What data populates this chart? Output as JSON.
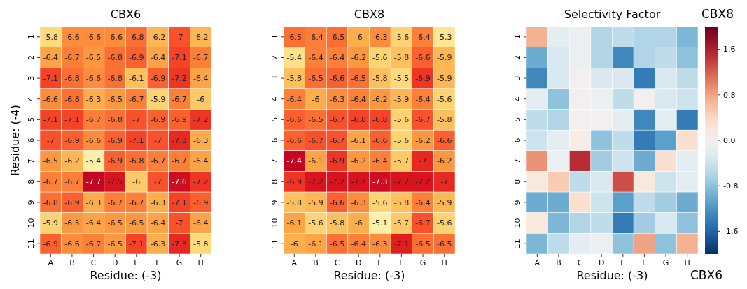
{
  "chart_data": [
    {
      "type": "heatmap",
      "title": "CBX6",
      "xlabel": "Residue: (-3)",
      "ylabel": "Residue: (-4)",
      "data_labels": true,
      "categories": [
        "A",
        "B",
        "C",
        "D",
        "E",
        "F",
        "G",
        "H"
      ],
      "y_categories": [
        "1",
        "2",
        "3",
        "4",
        "5",
        "6",
        "7",
        "8",
        "9",
        "10",
        "11"
      ],
      "cells": [
        [
          -5.8,
          -6.6,
          -6.6,
          -6.6,
          -6.8,
          -6.2,
          -7,
          -6.2
        ],
        [
          -6.4,
          -6.7,
          -6.5,
          -6.8,
          -6.9,
          -6.4,
          -7.1,
          -6.7
        ],
        [
          -7.1,
          -6.8,
          -6.6,
          -6.8,
          -6.1,
          -6.9,
          -7.2,
          -6.4
        ],
        [
          -6.6,
          -6.8,
          -6.3,
          -6.5,
          -6.7,
          -5.9,
          -6.7,
          -6
        ],
        [
          -7.1,
          -7.1,
          -6.7,
          -6.8,
          -7,
          -6.9,
          -6.9,
          -7.2
        ],
        [
          -7,
          -6.9,
          -6.6,
          -6.9,
          -7.1,
          -7,
          -7.3,
          -6.3
        ],
        [
          -6.5,
          -6.2,
          -5.4,
          -6.9,
          -6.8,
          -6.7,
          -6.7,
          -6.4
        ],
        [
          -6.7,
          -6.7,
          -7.7,
          -7.5,
          -6,
          -7,
          -7.6,
          -7.2
        ],
        [
          -6.8,
          -6.9,
          -6.3,
          -6.7,
          -6.7,
          -6.3,
          -7.1,
          -6.9
        ],
        [
          -5.9,
          -6.5,
          -6.4,
          -6.5,
          -6.5,
          -6.4,
          -7,
          -6.4
        ],
        [
          -6.9,
          -6.6,
          -6.7,
          -6.5,
          -7.1,
          -6.3,
          -7.3,
          -5.8
        ]
      ]
    },
    {
      "type": "heatmap",
      "title": "CBX8",
      "xlabel": "Residue: (-3)",
      "data_labels": true,
      "categories": [
        "A",
        "B",
        "C",
        "D",
        "E",
        "F",
        "G",
        "H"
      ],
      "y_categories": [
        "1",
        "2",
        "3",
        "4",
        "5",
        "6",
        "7",
        "8",
        "9",
        "10",
        "11"
      ],
      "cells": [
        [
          -6.5,
          -6.4,
          -6.5,
          -6,
          -6.3,
          -5.6,
          -6.4,
          -5.3
        ],
        [
          -5.4,
          -6.4,
          -6.4,
          -6.2,
          -5.6,
          -5.8,
          -6.6,
          -5.9
        ],
        [
          -5.8,
          -6.5,
          -6.6,
          -6.5,
          -5.8,
          -5.5,
          -6.9,
          -5.9
        ],
        [
          -6.4,
          -6,
          -6.3,
          -6.4,
          -6.2,
          -5.9,
          -6.4,
          -5.6
        ],
        [
          -6.6,
          -6.5,
          -6.7,
          -6.8,
          -6.8,
          -5.6,
          -6.7,
          -5.8
        ],
        [
          -6.6,
          -6.7,
          -6.7,
          -6.1,
          -6.6,
          -5.6,
          -6.2,
          -6.6
        ],
        [
          -7.4,
          -6.1,
          -6.9,
          -6.2,
          -6.4,
          -5.7,
          -7,
          -6.2
        ],
        [
          -6.9,
          -7.2,
          -7.2,
          -7.2,
          -7.3,
          -7.2,
          -7.2,
          -7
        ],
        [
          -5.8,
          -5.9,
          -6.6,
          -6.3,
          -5.6,
          -5.8,
          -6.4,
          -5.9
        ],
        [
          -6.1,
          -5.6,
          -5.8,
          -6,
          -5.1,
          -5.7,
          -6.7,
          -5.6
        ],
        [
          -6,
          -6.1,
          -6.5,
          -6.4,
          -6.3,
          -7.1,
          -6.5,
          -6.5
        ]
      ]
    },
    {
      "type": "heatmap",
      "title": "Selectivity Factor",
      "xlabel": "Residue: (-3)",
      "annotations": [
        "CBX8",
        "CBX6"
      ],
      "categories": [
        "A",
        "B",
        "C",
        "D",
        "E",
        "F",
        "G",
        "H"
      ],
      "y_categories": [
        "1",
        "2",
        "3",
        "4",
        "5",
        "6",
        "7",
        "8",
        "9",
        "10",
        "11"
      ],
      "clim": [
        -2,
        2
      ],
      "cticks": [
        {
          "value": -1.6,
          "label": "-1.6"
        },
        {
          "value": -0.8,
          "label": "-0.8"
        },
        {
          "value": 0,
          "label": "0.0"
        },
        {
          "value": 0.8,
          "label": "0.8"
        },
        {
          "value": 1.6,
          "label": "1.6"
        }
      ],
      "cells": [
        [
          0.7,
          -0.2,
          -0.1,
          -0.6,
          -0.5,
          -0.6,
          -0.6,
          -0.9
        ],
        [
          -1.0,
          -0.3,
          -0.1,
          -0.6,
          -1.3,
          -0.6,
          -0.5,
          -0.8
        ],
        [
          -1.3,
          -0.3,
          0.0,
          -0.3,
          -0.3,
          -1.4,
          -0.3,
          -0.5
        ],
        [
          -0.2,
          -0.8,
          0.0,
          -0.1,
          -0.5,
          0.0,
          -0.3,
          -0.4
        ],
        [
          -0.5,
          -0.6,
          0.0,
          0.0,
          -0.2,
          -1.3,
          -0.2,
          -1.4
        ],
        [
          -0.4,
          -0.2,
          0.1,
          -0.8,
          -0.5,
          -1.4,
          -1.1,
          0.3
        ],
        [
          0.9,
          -0.1,
          1.5,
          -0.7,
          -0.4,
          -1.0,
          0.3,
          -0.2
        ],
        [
          0.2,
          0.5,
          -0.5,
          -0.3,
          1.3,
          0.2,
          -0.4,
          -0.2
        ],
        [
          -1.0,
          -1.0,
          0.3,
          -0.4,
          -1.1,
          -0.5,
          -0.7,
          -1.0
        ],
        [
          0.2,
          -0.9,
          -0.6,
          -0.5,
          -1.4,
          -0.7,
          -0.3,
          -0.8
        ],
        [
          -0.9,
          -0.5,
          -0.2,
          -0.1,
          -0.8,
          0.8,
          -0.8,
          0.7
        ]
      ]
    }
  ]
}
